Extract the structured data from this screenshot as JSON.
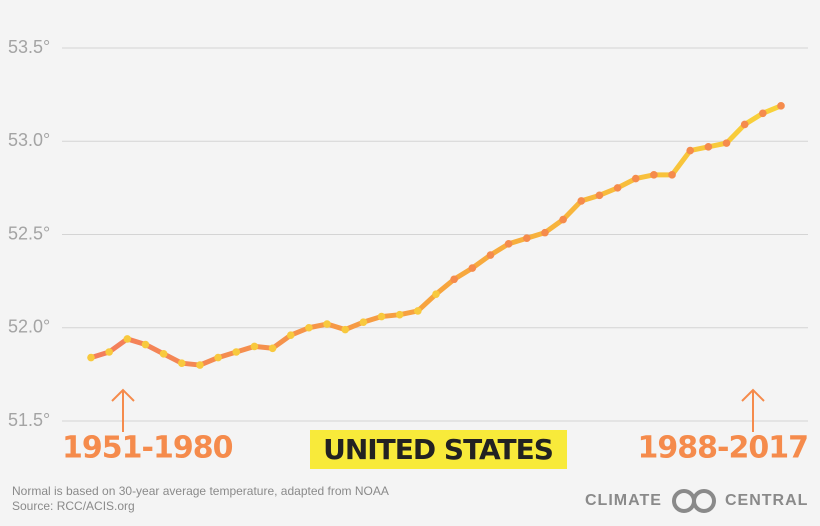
{
  "chart_data": {
    "type": "line",
    "title": "UNITED STATES",
    "annotations": [
      "1951-1980",
      "1988-2017"
    ],
    "notes": [
      "Normal is based on 30-year average temperature, adapted from NOAA",
      "Source: RCC/ACIS.org"
    ],
    "brand": [
      "CLIMATE",
      "CENTRAL"
    ],
    "series": [
      {
        "color": "#f58b4c",
        "marker_color": "#f8c93e",
        "values": [
          51.84,
          51.87,
          51.94,
          51.91,
          51.86,
          51.81,
          51.8,
          51.84,
          51.87,
          51.9,
          51.89,
          51.96,
          52.0,
          52.02,
          51.99,
          52.03,
          52.06,
          52.07,
          52.09,
          52.18,
          52.26,
          52.32,
          52.39,
          52.45,
          52.48,
          52.51,
          52.58,
          52.68,
          52.71,
          52.75,
          52.8,
          52.82,
          52.82,
          52.95,
          52.97,
          52.99,
          53.09,
          53.15,
          53.19
        ]
      }
    ],
    "ylim": [
      51.5,
      53.5
    ],
    "yticks": [
      {
        "value": 51.5,
        "label": "51.5°"
      },
      {
        "value": 52.0,
        "label": "52.0°"
      },
      {
        "value": 52.5,
        "label": "52.5°"
      },
      {
        "value": 53.0,
        "label": "53.0°"
      },
      {
        "value": 53.5,
        "label": "53.5°"
      }
    ],
    "grid": true
  }
}
